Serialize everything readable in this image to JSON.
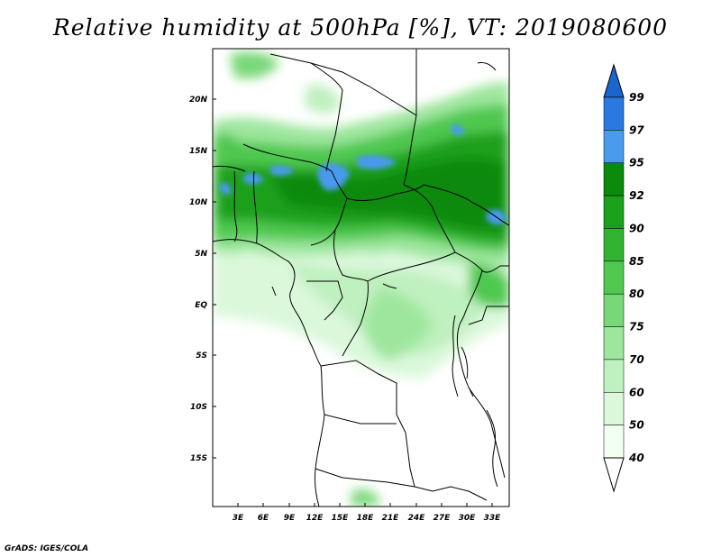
{
  "title": "Relative humidity at 500hPa [%], VT: 2019080600",
  "footer": "GrADS: IGES/COLA",
  "map": {
    "lon_range": [
      0,
      35
    ],
    "lat_range": [
      -20,
      25
    ],
    "lat_ticks": [
      "20N",
      "15N",
      "10N",
      "5N",
      "EQ",
      "5S",
      "10S",
      "15S"
    ],
    "lon_ticks": [
      "3E",
      "6E",
      "9E",
      "12E",
      "15E",
      "18E",
      "21E",
      "24E",
      "27E",
      "30E",
      "33E"
    ],
    "coastline": "black",
    "boundaries": "black"
  },
  "colorbar": {
    "labels": [
      "99",
      "97",
      "95",
      "92",
      "90",
      "85",
      "80",
      "75",
      "70",
      "60",
      "50",
      "40"
    ],
    "colors": [
      "#1a66cc",
      "#2a78e0",
      "#4a9aee",
      "#0b8a0b",
      "#1aa01a",
      "#32b432",
      "#50c850",
      "#78d878",
      "#9ee69e",
      "#bff0bf",
      "#dbf8db",
      "#f0fff0"
    ]
  }
}
